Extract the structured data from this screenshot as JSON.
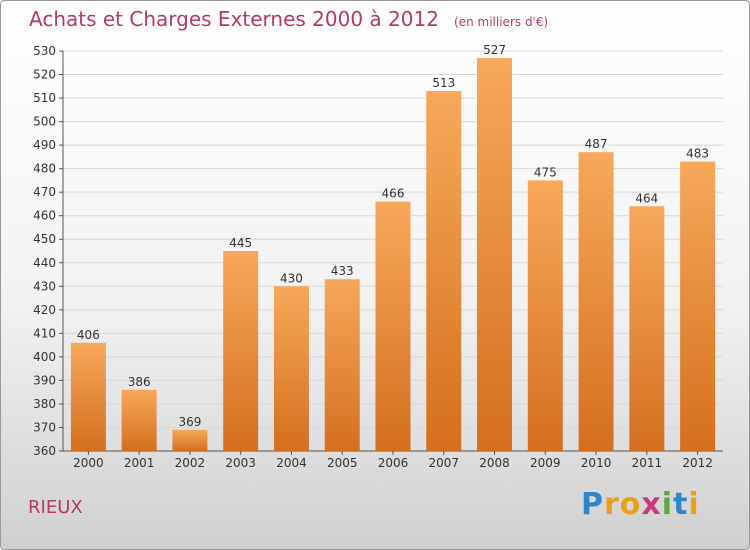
{
  "header": {
    "title": "Achats et Charges Externes 2000 à 2012",
    "subtitle": "(en milliers d'€)"
  },
  "footer": {
    "city": "RIEUX",
    "logo_text": "Proxiti"
  },
  "colors": {
    "title": "#b23a6a",
    "bar_top": "#f7a85a",
    "bar_bottom": "#d46f1e",
    "grid": "#d8d8d8",
    "axis_text": "#333333"
  },
  "chart_data": {
    "type": "bar",
    "title": "Achats et Charges Externes 2000 à 2012",
    "subtitle": "(en milliers d'€)",
    "categories": [
      "2000",
      "2001",
      "2002",
      "2003",
      "2004",
      "2005",
      "2006",
      "2007",
      "2008",
      "2009",
      "2010",
      "2011",
      "2012"
    ],
    "values": [
      406,
      386,
      369,
      445,
      430,
      433,
      466,
      513,
      527,
      475,
      487,
      464,
      483
    ],
    "ylim": [
      360,
      530
    ],
    "ytick_step": 10,
    "grid": true,
    "data_labels": true
  }
}
